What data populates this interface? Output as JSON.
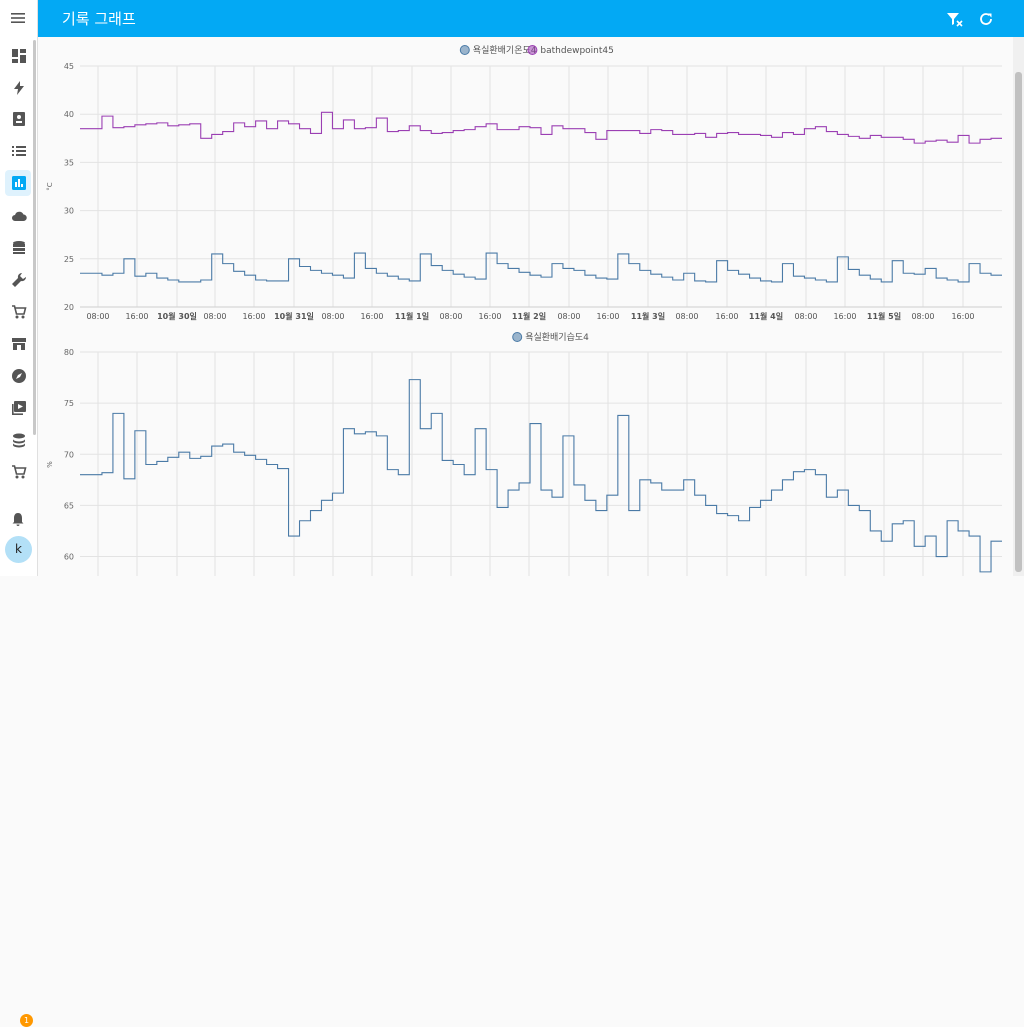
{
  "header": {
    "title": "기록 그래프"
  },
  "sidebar": {
    "items": [
      {
        "name": "dashboard-icon"
      },
      {
        "name": "energy-icon"
      },
      {
        "name": "logbook-icon"
      },
      {
        "name": "list-icon"
      },
      {
        "name": "history-icon",
        "active": true
      },
      {
        "name": "cloud-icon"
      },
      {
        "name": "database-icon"
      },
      {
        "name": "wrench-icon"
      },
      {
        "name": "cart-icon"
      },
      {
        "name": "store-icon"
      },
      {
        "name": "compass-icon"
      },
      {
        "name": "media-icon"
      },
      {
        "name": "stack-icon"
      },
      {
        "name": "cart-icon-2"
      }
    ],
    "notification_count": "1",
    "user_initial": "k"
  },
  "colors": {
    "accent": "#03a9f4",
    "series_blue": "#4a7aa6",
    "series_purple": "#9b3fb3"
  },
  "chart_data": [
    {
      "type": "line",
      "ylabel": "°C",
      "ylim": [
        20,
        45
      ],
      "yticks": [
        "45",
        "40",
        "35",
        "30",
        "25",
        "20"
      ],
      "xticks": [
        {
          "label": "08:00",
          "bold": false
        },
        {
          "label": "16:00",
          "bold": false
        },
        {
          "label": "10월 30일",
          "bold": true
        },
        {
          "label": "08:00",
          "bold": false
        },
        {
          "label": "16:00",
          "bold": false
        },
        {
          "label": "10월 31일",
          "bold": true
        },
        {
          "label": "08:00",
          "bold": false
        },
        {
          "label": "16:00",
          "bold": false
        },
        {
          "label": "11월 1일",
          "bold": true
        },
        {
          "label": "08:00",
          "bold": false
        },
        {
          "label": "16:00",
          "bold": false
        },
        {
          "label": "11월 2일",
          "bold": true
        },
        {
          "label": "08:00",
          "bold": false
        },
        {
          "label": "16:00",
          "bold": false
        },
        {
          "label": "11월 3일",
          "bold": true
        },
        {
          "label": "08:00",
          "bold": false
        },
        {
          "label": "16:00",
          "bold": false
        },
        {
          "label": "11월 4일",
          "bold": true
        },
        {
          "label": "08:00",
          "bold": false
        },
        {
          "label": "16:00",
          "bold": false
        },
        {
          "label": "11월 5일",
          "bold": true
        },
        {
          "label": "08:00",
          "bold": false
        },
        {
          "label": "16:00",
          "bold": false
        }
      ],
      "series": [
        {
          "name": "욕실환배기온도4",
          "color": "#4a7aa6",
          "values": [
            23.5,
            23.5,
            23.3,
            23.5,
            25.0,
            23.2,
            23.5,
            23.0,
            22.8,
            22.6,
            22.6,
            22.8,
            25.5,
            24.5,
            23.7,
            23.3,
            22.8,
            22.7,
            22.7,
            25.0,
            24.2,
            23.8,
            23.5,
            23.3,
            23.0,
            25.6,
            24.0,
            23.5,
            23.2,
            22.9,
            22.7,
            25.5,
            24.3,
            23.8,
            23.4,
            23.1,
            22.9,
            25.6,
            24.5,
            24.0,
            23.6,
            23.3,
            23.1,
            24.5,
            24.0,
            23.8,
            23.3,
            23.0,
            22.9,
            25.5,
            24.5,
            23.8,
            23.4,
            23.1,
            22.8,
            23.5,
            22.7,
            22.6,
            24.8,
            23.8,
            23.4,
            23.0,
            22.7,
            22.6,
            24.5,
            23.2,
            23.0,
            22.8,
            22.6,
            25.2,
            23.9,
            23.3,
            22.9,
            22.6,
            24.8,
            23.5,
            23.4,
            24.0,
            23.0,
            22.8,
            22.6,
            24.5,
            23.5,
            23.3
          ]
        },
        {
          "name": "bathdewpoint45",
          "color": "#9b3fb3",
          "values": [
            38.5,
            38.5,
            39.8,
            38.6,
            38.7,
            38.9,
            39.0,
            39.1,
            38.8,
            38.9,
            39.0,
            37.5,
            37.9,
            38.2,
            39.1,
            38.7,
            39.3,
            38.5,
            39.3,
            39.0,
            38.5,
            38.0,
            40.2,
            38.5,
            39.4,
            38.5,
            38.6,
            39.6,
            38.2,
            38.3,
            38.8,
            38.3,
            38.0,
            38.1,
            38.3,
            38.4,
            38.7,
            39.0,
            38.4,
            38.4,
            38.7,
            38.6,
            37.9,
            38.8,
            38.5,
            38.5,
            38.1,
            37.4,
            38.3,
            38.3,
            38.3,
            38.0,
            38.4,
            38.3,
            37.9,
            37.9,
            38.0,
            37.6,
            38.0,
            38.1,
            37.9,
            37.9,
            37.8,
            37.6,
            38.1,
            37.9,
            38.5,
            38.7,
            38.2,
            37.9,
            37.7,
            37.5,
            37.8,
            37.6,
            37.6,
            37.4,
            37.0,
            37.2,
            37.3,
            37.1,
            37.8,
            37.0,
            37.4,
            37.5
          ]
        }
      ]
    },
    {
      "type": "line",
      "ylabel": "%",
      "ylim": [
        58,
        80
      ],
      "yticks": [
        "80",
        "75",
        "70",
        "65",
        "60"
      ],
      "series": [
        {
          "name": "욕실환배기습도4",
          "color": "#4a7aa6",
          "values": [
            68.0,
            68.0,
            68.2,
            74.0,
            67.6,
            72.3,
            69.0,
            69.3,
            69.7,
            70.2,
            69.6,
            69.8,
            70.8,
            71.0,
            70.2,
            69.9,
            69.5,
            69.0,
            68.6,
            62.0,
            63.5,
            64.5,
            65.5,
            66.2,
            72.5,
            72.0,
            72.2,
            71.8,
            68.5,
            68.0,
            77.3,
            72.5,
            74.0,
            69.4,
            69.0,
            68.0,
            72.5,
            68.5,
            64.8,
            66.5,
            67.2,
            73.0,
            66.5,
            65.8,
            71.8,
            67.0,
            65.5,
            64.5,
            66.0,
            73.8,
            64.5,
            67.5,
            67.2,
            66.5,
            66.5,
            67.5,
            66.0,
            65.0,
            64.2,
            64.0,
            63.5,
            64.8,
            65.5,
            66.5,
            67.5,
            68.3,
            68.5,
            68.0,
            65.8,
            66.5,
            65.0,
            64.5,
            62.5,
            61.5,
            63.2,
            63.5,
            61.0,
            62.0,
            60.0,
            63.5,
            62.5,
            62.0,
            58.5,
            61.5
          ]
        }
      ]
    }
  ]
}
